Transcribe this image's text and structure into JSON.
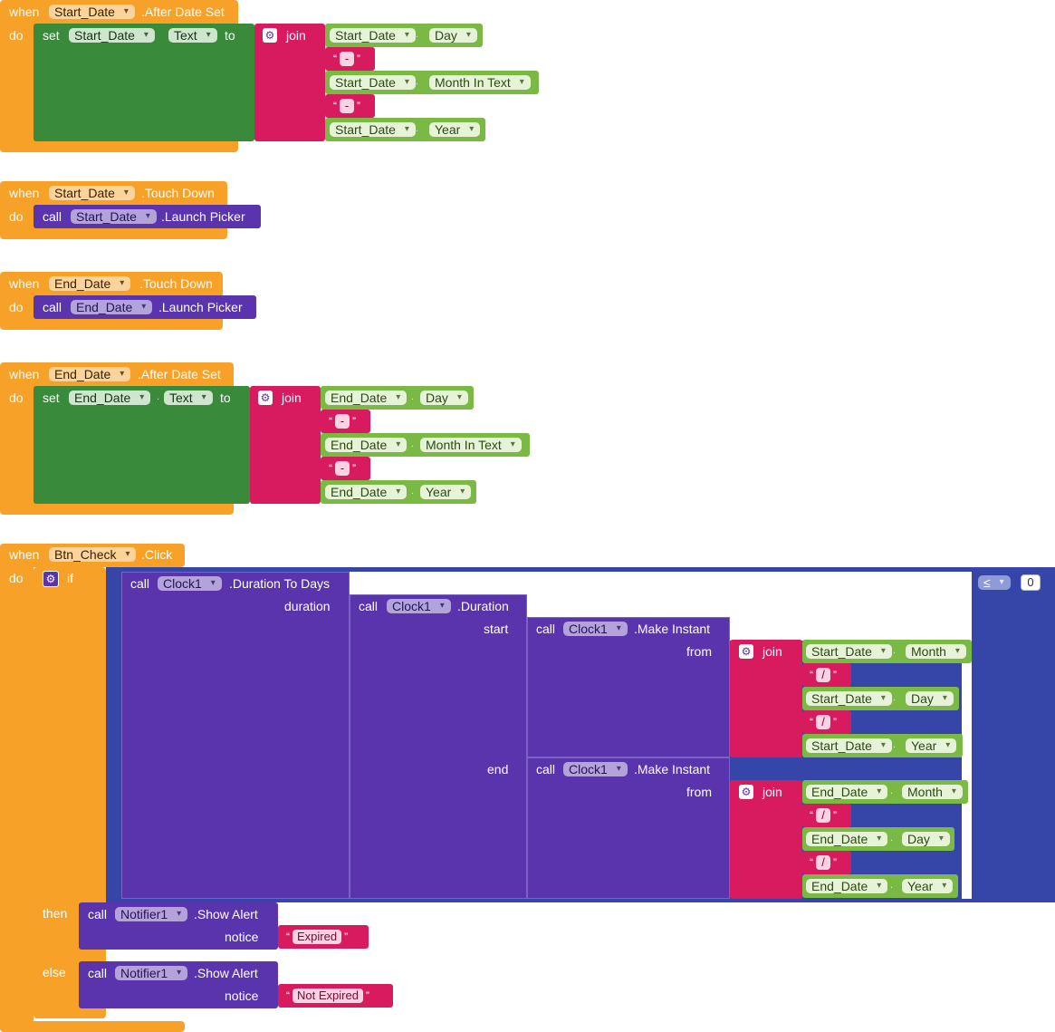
{
  "kw": {
    "when": "when",
    "do": "do",
    "set": "set",
    "to": "to",
    "join": "join",
    "call": "call",
    "if": "if",
    "then": "then",
    "else": "else",
    "dot": ".",
    "duration": "duration",
    "start": "start",
    "end": "end",
    "from": "from",
    "notice": "notice"
  },
  "components": {
    "start_date": "Start_Date",
    "end_date": "End_Date",
    "btn_check": "Btn_Check",
    "clock": "Clock1",
    "notifier": "Notifier1"
  },
  "events": {
    "after_date_set": ".After Date Set",
    "touch_down": ".Touch Down",
    "click": ".Click"
  },
  "methods": {
    "launch_picker": ".Launch Picker",
    "duration_to_days": ".Duration To Days",
    "duration": ".Duration",
    "make_instant": ".Make Instant",
    "show_alert": ".Show Alert"
  },
  "properties": {
    "text": "Text",
    "day": "Day",
    "month_in_text": "Month In Text",
    "year": "Year",
    "month": "Month"
  },
  "strings": {
    "dash": "-",
    "slash": "/",
    "expired": "Expired",
    "not_expired": "Not Expired"
  },
  "compare": {
    "op": "≤",
    "value": "0"
  },
  "icons": {
    "gear": "gear-icon",
    "dropdown": "chevron-down-icon"
  },
  "colors": {
    "event": "#f7a128",
    "setter": "#3a8a3c",
    "text": "#d81b5f",
    "getter": "#7ab943",
    "procedure": "#5a34ad",
    "compare": "#3545a8"
  }
}
